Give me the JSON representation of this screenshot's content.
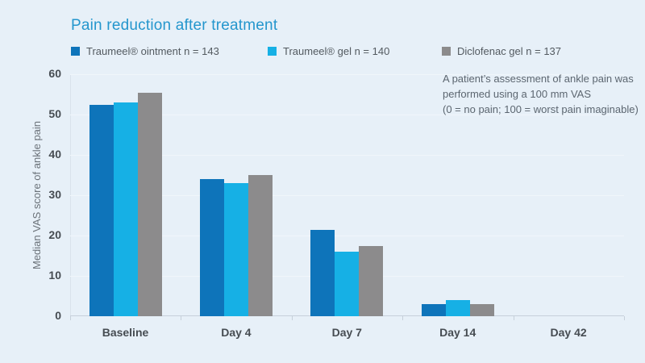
{
  "page": {
    "background": "#e7f0f8"
  },
  "title": {
    "text": "Pain reduction after treatment",
    "color": "#2496cd"
  },
  "legend": {
    "items": [
      {
        "label": "Traumeel® ointment n = 143",
        "color": "#0e74ba",
        "x": 88
      },
      {
        "label": "Traumeel® gel n = 140",
        "color": "#16b0e5",
        "x": 332
      },
      {
        "label": "Diclofenac gel n = 137",
        "color": "#8c8b8c",
        "x": 548
      }
    ]
  },
  "annotation": {
    "lines": [
      "A patient’s assessment of ankle pain was",
      "performed using a 100 mm VAS",
      "(0 = no pain; 100 = worst pain imaginable)"
    ]
  },
  "chart_data": {
    "type": "bar",
    "title": "Pain reduction after treatment",
    "categories": [
      "Baseline",
      "Day 4",
      "Day 7",
      "Day 14",
      "Day 42"
    ],
    "series": [
      {
        "name": "Traumeel® ointment n = 143",
        "color": "#0e74ba",
        "values": [
          52.5,
          34,
          21.5,
          3,
          0
        ]
      },
      {
        "name": "Traumeel® gel n = 140",
        "color": "#16b0e5",
        "values": [
          53,
          33,
          16,
          4,
          0
        ]
      },
      {
        "name": "Diclofenac gel n = 137",
        "color": "#8c8b8c",
        "values": [
          55.5,
          35,
          17.5,
          3,
          0
        ]
      }
    ],
    "xlabel": "",
    "ylabel": "Median VAS score of ankle pain",
    "ylim": [
      0,
      60
    ],
    "yticks": [
      0,
      10,
      20,
      30,
      40,
      50,
      60
    ],
    "grid": true,
    "legend_position": "top",
    "colors": {
      "grid": "#f0f6fb",
      "axis": "#c6d0da",
      "tick_label": "#464c52"
    }
  }
}
